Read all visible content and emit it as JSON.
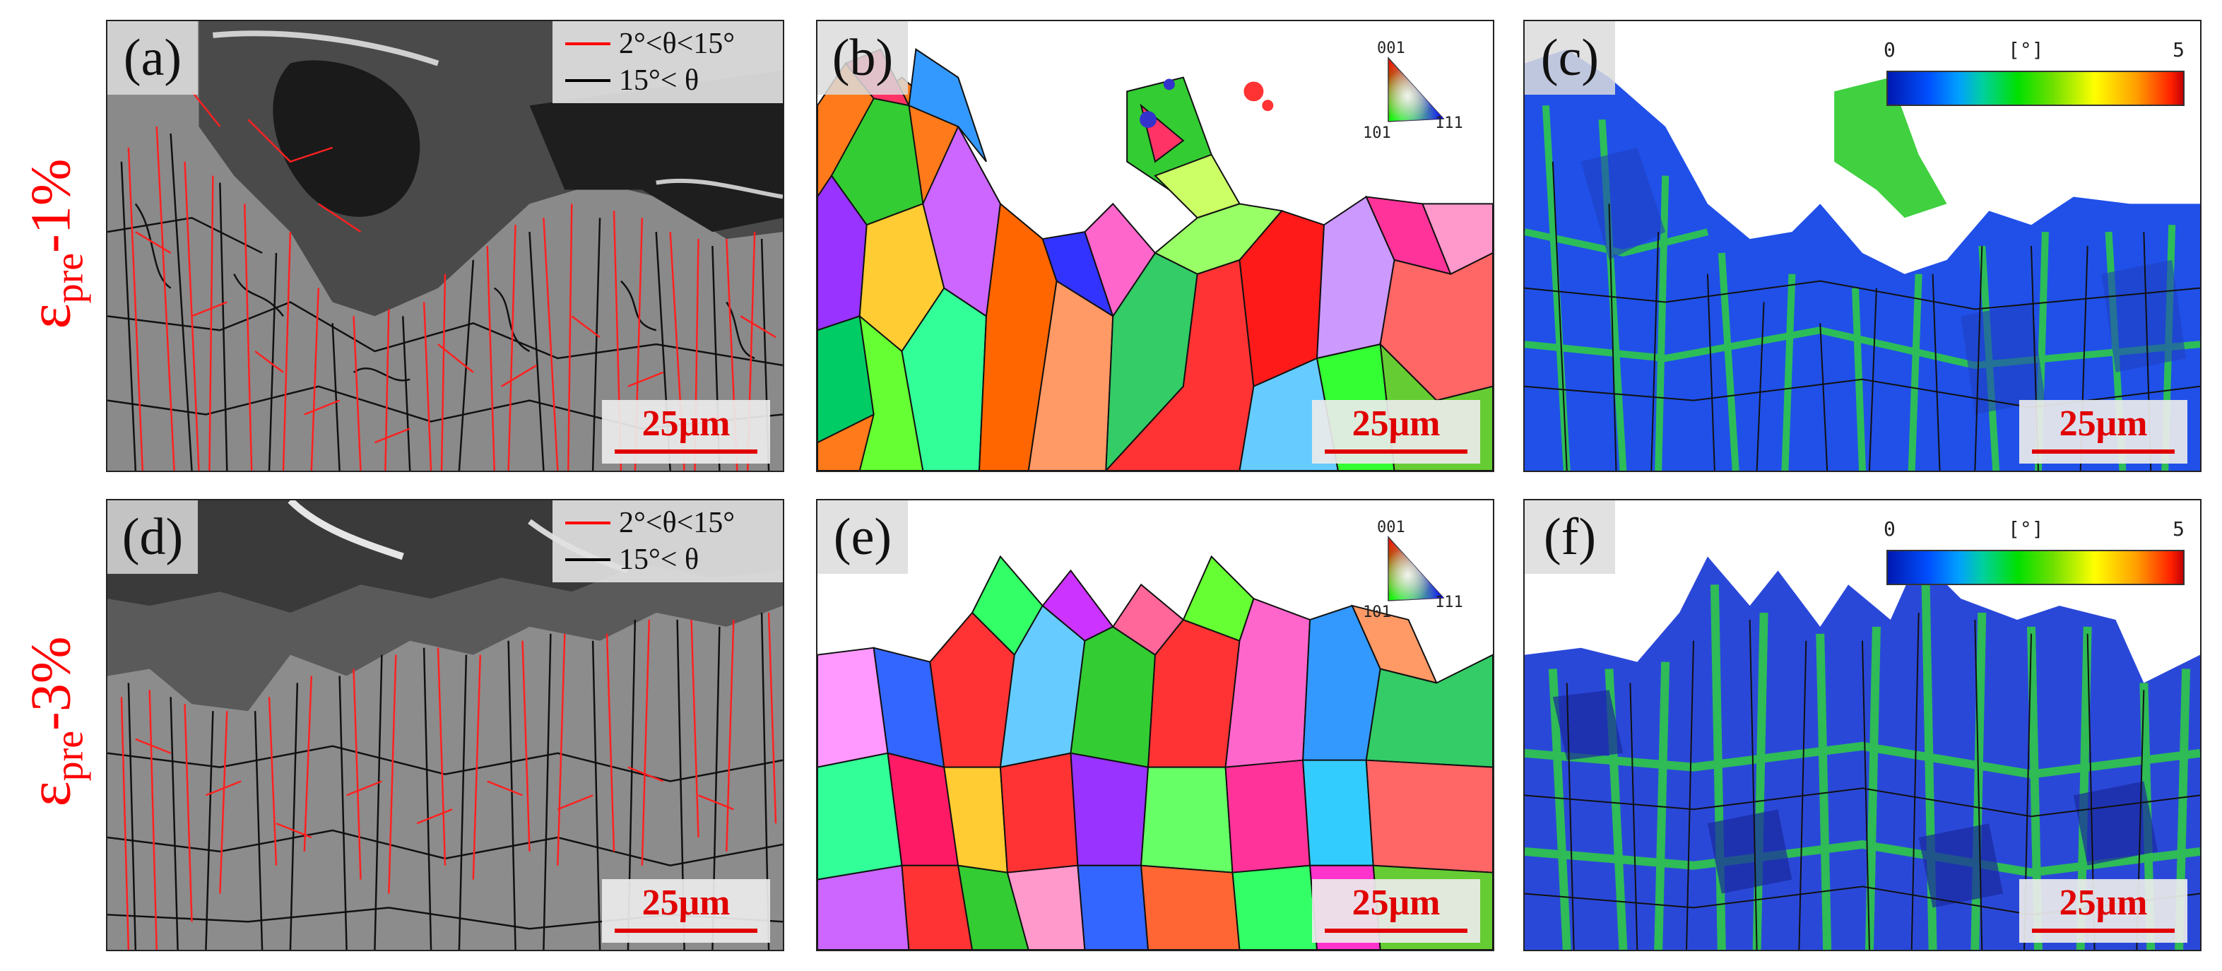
{
  "rows": [
    {
      "label_symbol": "ε",
      "label_sub": "pre",
      "label_suffix": "-1%"
    },
    {
      "label_symbol": "ε",
      "label_sub": "pre",
      "label_suffix": "-3%"
    }
  ],
  "panels": {
    "a": {
      "label": "(a)",
      "scale": "25μm",
      "legend_low": "2°<θ<15°",
      "legend_high": "15°< θ"
    },
    "b": {
      "label": "(b)",
      "scale": "25μm",
      "ipf_top": "001",
      "ipf_left": "101",
      "ipf_right": "111"
    },
    "c": {
      "label": "(c)",
      "scale": "25μm",
      "kam_min": "0",
      "kam_unit": "[°]",
      "kam_max": "5"
    },
    "d": {
      "label": "(d)",
      "scale": "25μm",
      "legend_low": "2°<θ<15°",
      "legend_high": "15°< θ"
    },
    "e": {
      "label": "(e)",
      "scale": "25μm",
      "ipf_top": "001",
      "ipf_left": "101",
      "ipf_right": "111"
    },
    "f": {
      "label": "(f)",
      "scale": "25μm",
      "kam_min": "0",
      "kam_unit": "[°]",
      "kam_max": "5"
    }
  },
  "colors": {
    "low_angle_boundary": "#ff0000",
    "high_angle_boundary": "#000000",
    "label_red": "#ff0000"
  }
}
